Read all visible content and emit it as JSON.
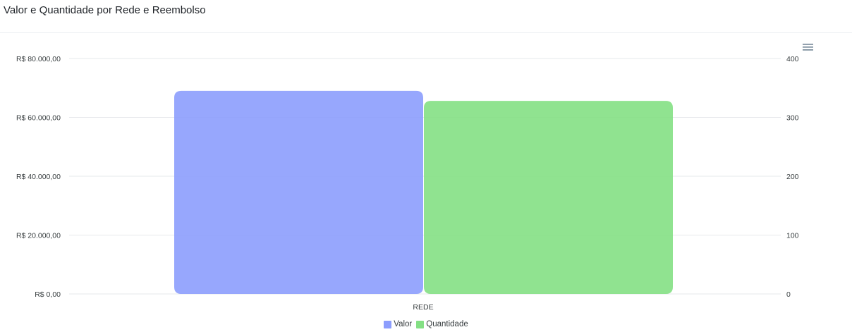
{
  "header": {
    "title": "Valor e Quantidade por Rede e Reembolso"
  },
  "toolbar": {
    "menu_icon": "hamburger-menu-icon"
  },
  "colors": {
    "valor": "#8c9dfd",
    "quantidade": "#84e084",
    "grid": "#e6e8eb"
  },
  "chart_data": {
    "type": "bar",
    "title": "Valor e Quantidade por Rede e Reembolso",
    "categories": [
      "REDE"
    ],
    "series": [
      {
        "name": "Valor",
        "axis": "left",
        "values": [
          69000
        ]
      },
      {
        "name": "Quantidade",
        "axis": "right",
        "values": [
          328
        ]
      }
    ],
    "y_left": {
      "range": [
        0,
        80000
      ],
      "ticks": [
        "R$ 0,00",
        "R$ 20.000,00",
        "R$ 40.000,00",
        "R$ 60.000,00",
        "R$ 80.000,00"
      ]
    },
    "y_right": {
      "range": [
        0,
        400
      ],
      "ticks": [
        "0",
        "100",
        "200",
        "300",
        "400"
      ]
    },
    "grid": true,
    "legend_position": "bottom-center"
  }
}
